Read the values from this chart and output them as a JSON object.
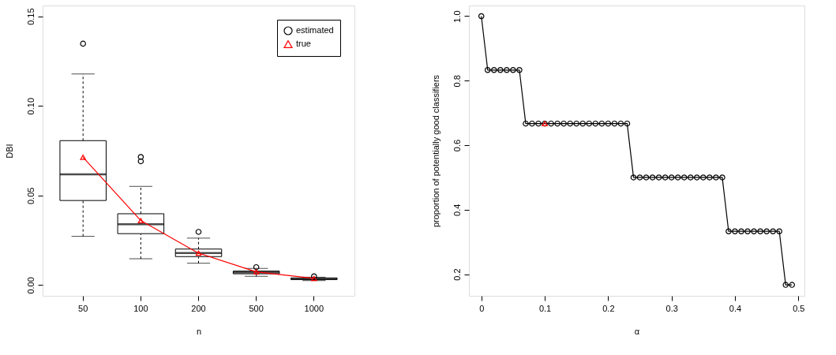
{
  "chart_data": [
    {
      "type": "box",
      "xlabel": "n",
      "ylabel": "DBI",
      "categories": [
        "50",
        "100",
        "200",
        "500",
        "1000"
      ],
      "ylim": [
        -0.006,
        0.156
      ],
      "yticks": [
        {
          "value": 0,
          "label": "0.00"
        },
        0.05,
        {
          "value": 0.1,
          "label": "0.10"
        },
        0.15
      ],
      "legend": "top right",
      "grid": false,
      "series": [
        {
          "name": "estimated",
          "type": "box",
          "color": "#000000",
          "marker": "circle",
          "boxes": [
            {
              "low": 0.0272,
              "q1": 0.0472,
              "median": 0.0618,
              "q3": 0.0806,
              "high": 0.1178,
              "outliers": [
                0.1347
              ]
            },
            {
              "low": 0.0147,
              "q1": 0.0287,
              "median": 0.034,
              "q3": 0.0398,
              "high": 0.0551,
              "outliers": [
                0.0715,
                0.0691
              ]
            },
            {
              "low": 0.0122,
              "q1": 0.0159,
              "median": 0.0179,
              "q3": 0.0201,
              "high": 0.0262,
              "outliers": [
                0.0297
              ]
            },
            {
              "low": 0.0049,
              "q1": 0.0063,
              "median": 0.0071,
              "q3": 0.0078,
              "high": 0.0093,
              "outliers": [
                0.01
              ]
            },
            {
              "low": 0.0025,
              "q1": 0.0031,
              "median": 0.0034,
              "q3": 0.004,
              "high": 0.0044,
              "outliers": [
                0.0049
              ]
            }
          ]
        },
        {
          "name": "true",
          "type": "line",
          "color": "#ff0000",
          "marker": "triangle",
          "values": [
            0.0713,
            0.036,
            0.0178,
            0.0074,
            0.0037
          ]
        }
      ]
    },
    {
      "type": "line",
      "xlabel": "α",
      "ylabel": "proportion of potentially good classifiers",
      "xlim": [
        -0.0196,
        0.5096
      ],
      "xticks": [
        0,
        0.1,
        0.2,
        0.3,
        0.4,
        0.5
      ],
      "ylim": [
        0.133,
        1.033
      ],
      "yticks": [
        0.2,
        0.4,
        0.6,
        0.8,
        {
          "value": 1,
          "label": "1.0"
        }
      ],
      "legend": false,
      "grid": false,
      "series": [
        {
          "type": "line",
          "color": "#000000",
          "marker": "circle",
          "x": [
            0,
            0.01,
            0.02,
            0.03,
            0.04,
            0.05,
            0.06,
            0.07,
            0.08,
            0.09,
            0.1,
            0.11,
            0.12,
            0.13,
            0.14,
            0.15,
            0.16,
            0.17,
            0.18,
            0.19,
            0.2,
            0.21,
            0.22,
            0.23,
            0.24,
            0.25,
            0.26,
            0.27,
            0.28,
            0.29,
            0.3,
            0.31,
            0.32,
            0.33,
            0.34,
            0.35,
            0.36,
            0.37,
            0.38,
            0.39,
            0.4,
            0.41,
            0.42,
            0.43,
            0.44,
            0.45,
            0.46,
            0.47,
            0.48,
            0.49
          ],
          "values": [
            1,
            0.833,
            0.833,
            0.833,
            0.833,
            0.833,
            0.833,
            0.667,
            0.667,
            0.667,
            0.667,
            0.667,
            0.667,
            0.667,
            0.667,
            0.667,
            0.667,
            0.667,
            0.667,
            0.667,
            0.667,
            0.667,
            0.667,
            0.667,
            0.5,
            0.5,
            0.5,
            0.5,
            0.5,
            0.5,
            0.5,
            0.5,
            0.5,
            0.5,
            0.5,
            0.5,
            0.5,
            0.5,
            0.5,
            0.333,
            0.333,
            0.333,
            0.333,
            0.333,
            0.333,
            0.333,
            0.333,
            0.333,
            0.167,
            0.167
          ]
        },
        {
          "type": "scatter",
          "color": "#ff0000",
          "marker": "triangle",
          "x": [
            0.1
          ],
          "values": [
            0.667
          ]
        }
      ]
    }
  ]
}
